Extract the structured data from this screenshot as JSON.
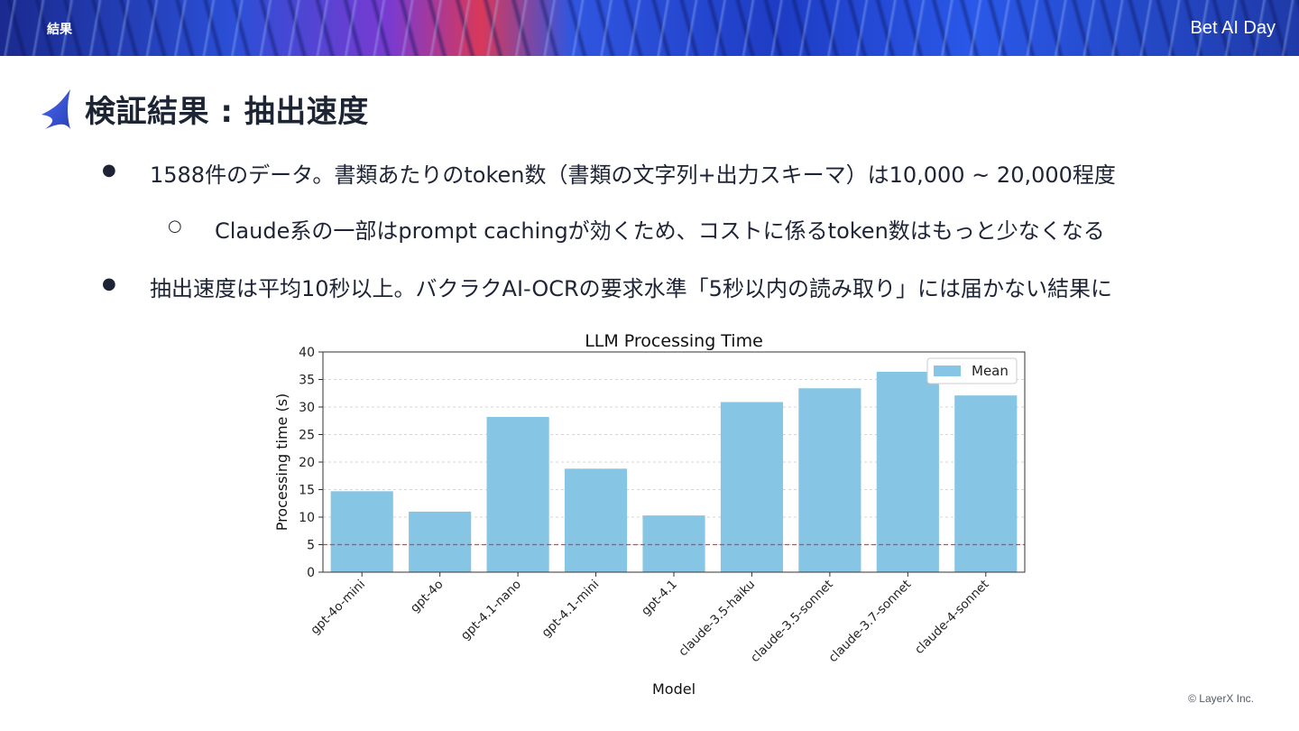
{
  "header": {
    "section_label": "結果",
    "brand": "Bet AI Day"
  },
  "slide": {
    "title": "検証結果 : 抽出速度",
    "bullets": [
      {
        "level": 1,
        "text": "1588件のデータ。書類あたりのtoken数（書類の文字列+出力スキーマ）は10,000 ~ 20,000程度"
      },
      {
        "level": 2,
        "text": "Claude系の一部はprompt cachingが効くため、コストに係るtoken数はもっと少なくなる"
      },
      {
        "level": 1,
        "text": "抽出速度は平均10秒以上。バクラクAI-OCRの要求水準「5秒以内の読み取り」には届かない結果に"
      }
    ],
    "bullet_marks": {
      "level1": "●",
      "level2": "○"
    }
  },
  "chart_data": {
    "type": "bar",
    "title": "LLM Processing Time",
    "xlabel": "Model",
    "ylabel": "Processing time (s)",
    "categories": [
      "gpt-4o-mini",
      "gpt-4o",
      "gpt-4.1-nano",
      "gpt-4.1-mini",
      "gpt-4.1",
      "claude-3.5-haiku",
      "claude-3.5-sonnet",
      "claude-3.7-sonnet",
      "claude-4-sonnet"
    ],
    "series": [
      {
        "name": "Mean",
        "values": [
          14.7,
          11.0,
          28.2,
          18.8,
          10.3,
          30.9,
          33.4,
          36.4,
          32.1
        ],
        "color": "#87c5e4"
      }
    ],
    "reference_line": {
      "y": 5,
      "color": "#e04040",
      "style": "dashed"
    },
    "ylim": [
      0,
      40
    ],
    "yticks": [
      0,
      5,
      10,
      15,
      20,
      25,
      30,
      35,
      40
    ],
    "grid": "horizontal dashed",
    "legend_position": "top-right"
  },
  "footer": {
    "copyright": "© LayerX Inc."
  },
  "colors": {
    "title_text": "#1d2535",
    "bar": "#87c5e4",
    "reference_line": "#e04040"
  }
}
